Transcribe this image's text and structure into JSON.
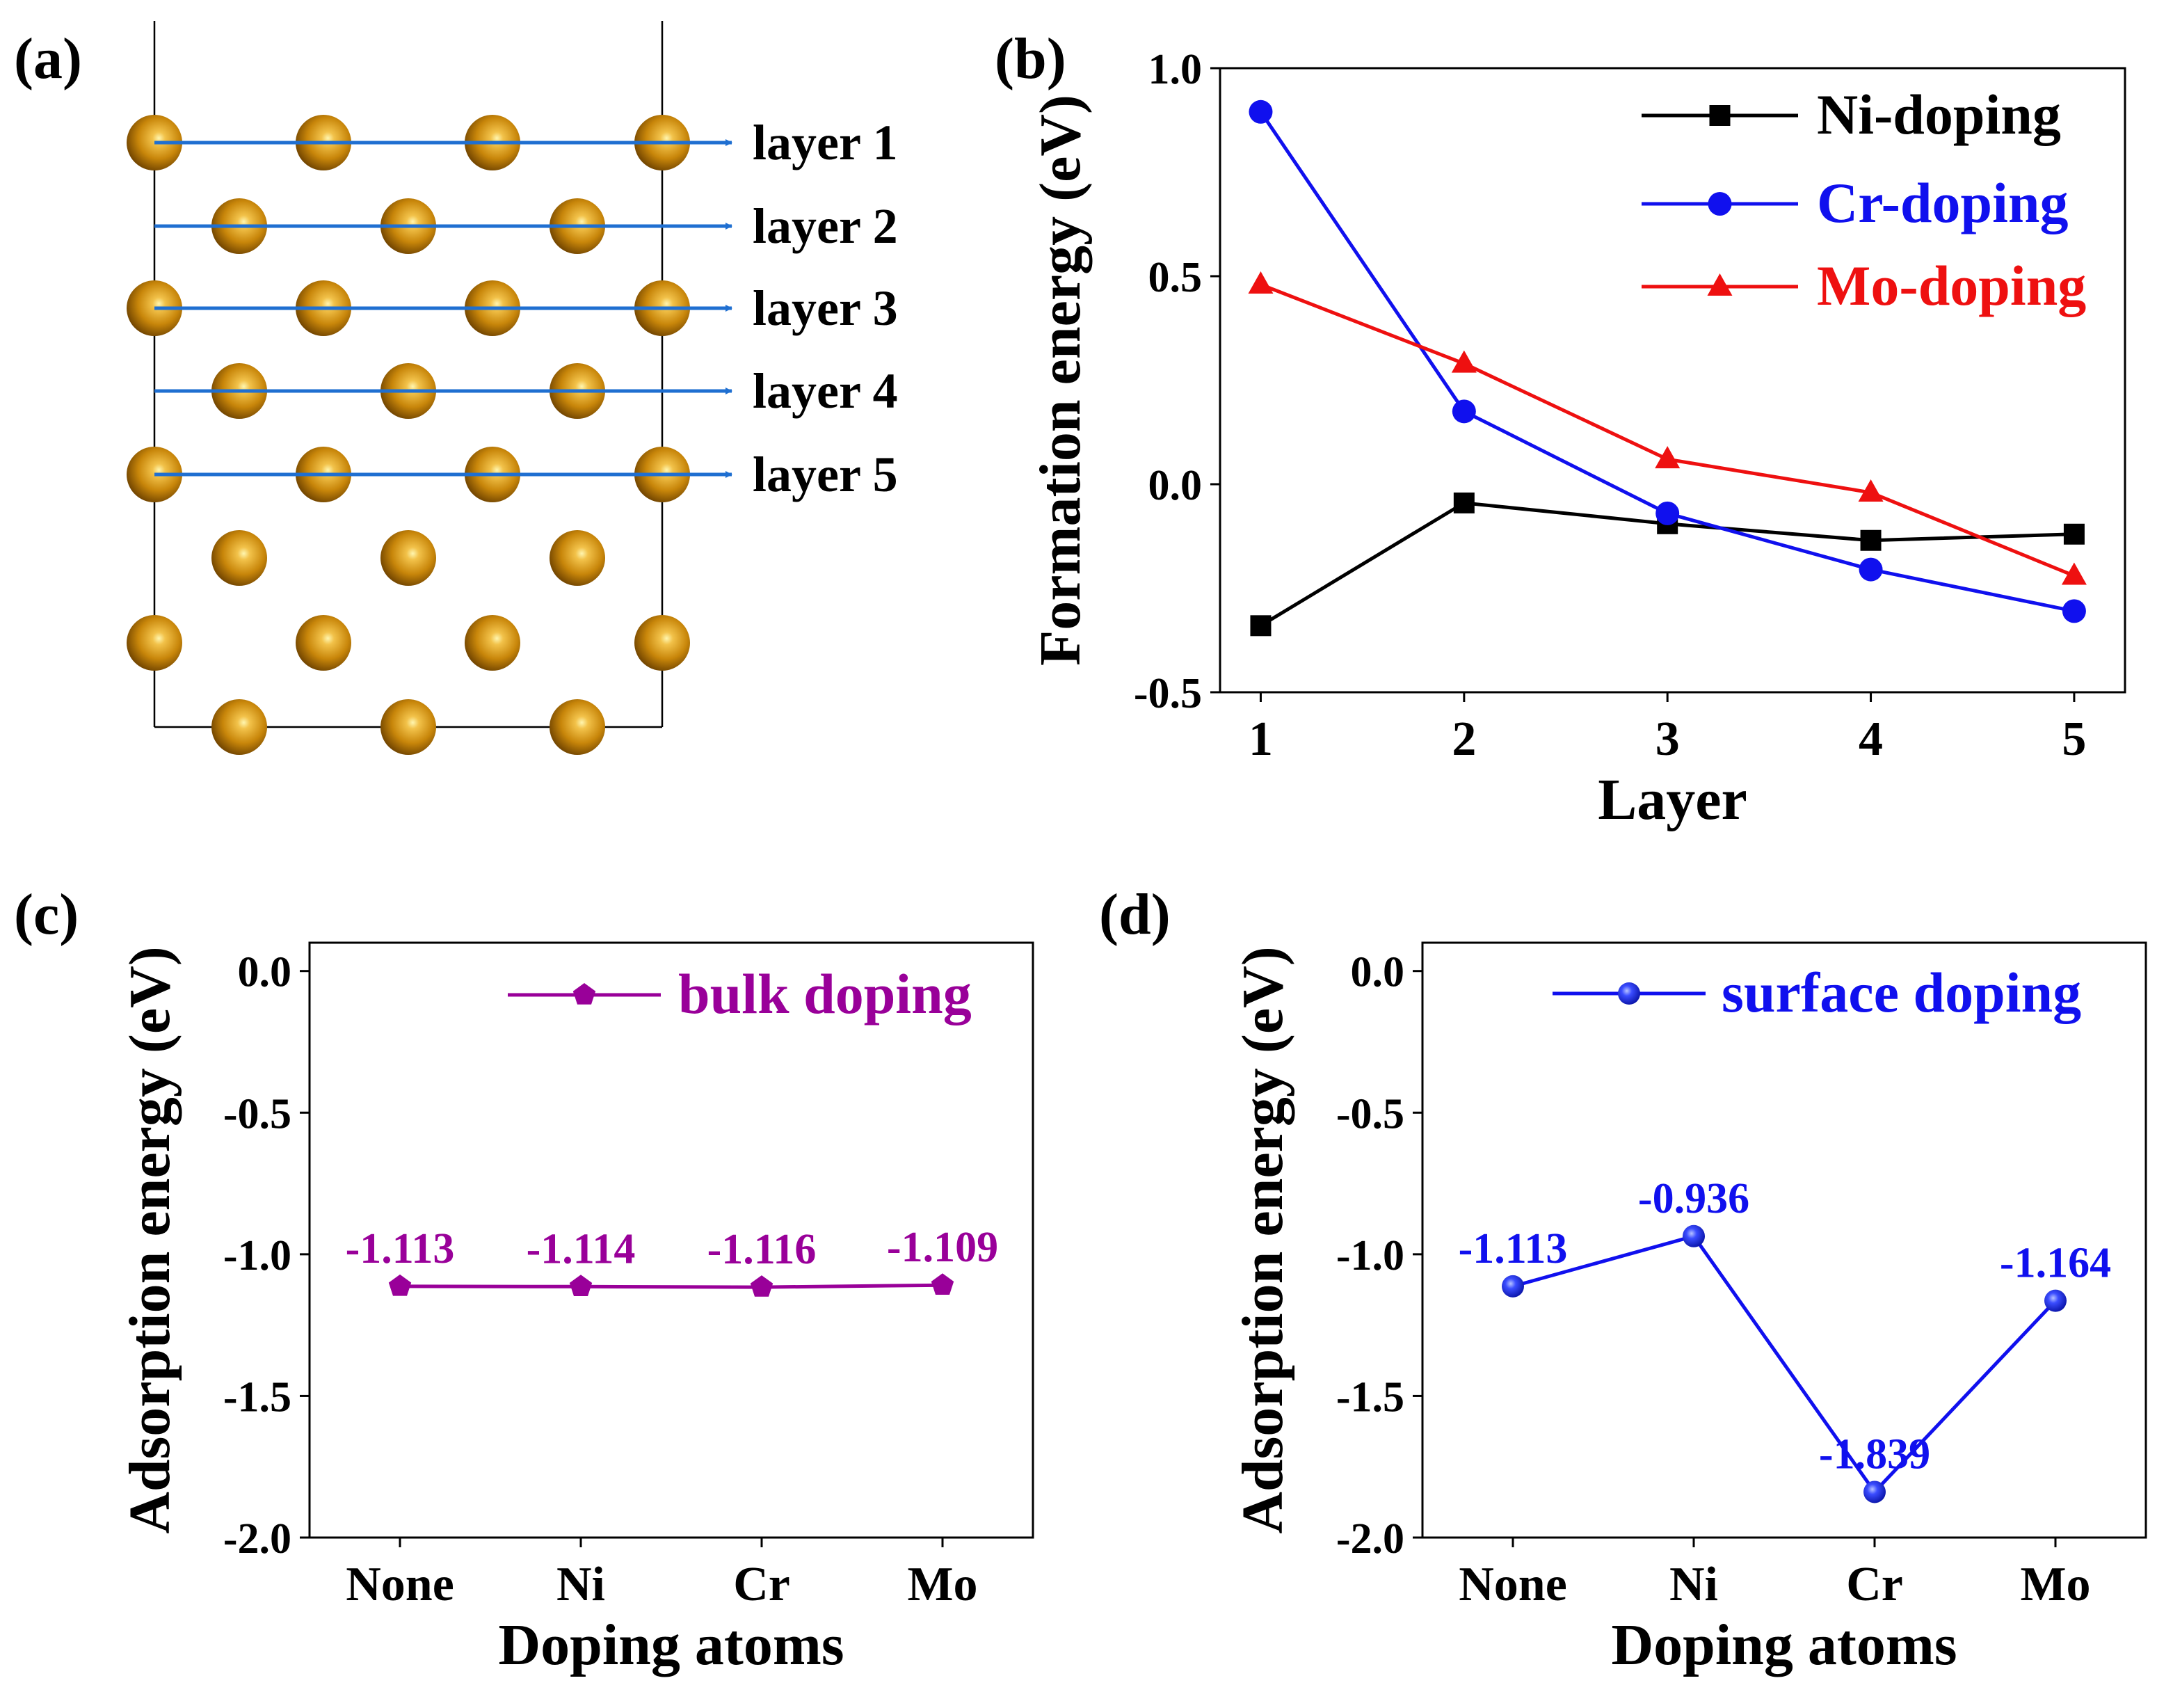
{
  "panels": {
    "a": {
      "label": "(a)",
      "layers": [
        "layer 1",
        "layer 2",
        "layer 3",
        "layer 4",
        "layer 5"
      ],
      "atom_color": "#c8860a"
    },
    "b": {
      "label": "(b)"
    },
    "c": {
      "label": "(c)"
    },
    "d": {
      "label": "(d)"
    }
  },
  "chart_data": [
    {
      "panel": "b",
      "type": "line",
      "xlabel": "Layer",
      "ylabel": "Formation energy (eV)",
      "x": [
        1,
        2,
        3,
        4,
        5
      ],
      "xticks": [
        "1",
        "2",
        "3",
        "4",
        "5"
      ],
      "xlim": [
        0.8,
        5.25
      ],
      "ylim": [
        -0.5,
        1.0
      ],
      "yticks": [
        "-0.5",
        "0.0",
        "0.5",
        "1.0"
      ],
      "legend_position": "top-right",
      "series": [
        {
          "name": "Ni-doping",
          "marker": "square",
          "color": "#000000",
          "values": [
            -0.34,
            -0.045,
            -0.095,
            -0.135,
            -0.12
          ]
        },
        {
          "name": "Cr-doping",
          "marker": "circle",
          "color": "#1010ee",
          "values": [
            0.895,
            0.175,
            -0.07,
            -0.205,
            -0.305
          ]
        },
        {
          "name": "Mo-doping",
          "marker": "triangle",
          "color": "#ee1010",
          "values": [
            0.48,
            0.29,
            0.06,
            -0.02,
            -0.22
          ]
        }
      ]
    },
    {
      "panel": "c",
      "type": "line",
      "xlabel": "Doping atoms",
      "ylabel": "Adsorption energy (eV)",
      "categories": [
        "None",
        "Ni",
        "Cr",
        "Mo"
      ],
      "ylim": [
        -2.0,
        0.1
      ],
      "yticks": [
        "-2.0",
        "-1.5",
        "-1.0",
        "-0.5",
        "0.0"
      ],
      "legend_position": "top-right",
      "series": [
        {
          "name": "bulk doping",
          "marker": "pentagon",
          "color": "#990099",
          "values": [
            -1.113,
            -1.114,
            -1.116,
            -1.109
          ],
          "labels": [
            "-1.113",
            "-1.114",
            "-1.116",
            "-1.109"
          ]
        }
      ]
    },
    {
      "panel": "d",
      "type": "line",
      "xlabel": "Doping atoms",
      "ylabel": "Adsorption energy (eV)",
      "categories": [
        "None",
        "Ni",
        "Cr",
        "Mo"
      ],
      "ylim": [
        -2.0,
        0.1
      ],
      "yticks": [
        "-2.0",
        "-1.5",
        "-1.0",
        "-0.5",
        "0.0"
      ],
      "legend_position": "top-right",
      "series": [
        {
          "name": "surface doping",
          "marker": "sphere",
          "color": "#1010ee",
          "values": [
            -1.113,
            -0.936,
            -1.839,
            -1.164
          ],
          "labels": [
            "-1.113",
            "-0.936",
            "-1.839",
            "-1.164"
          ]
        }
      ]
    }
  ]
}
